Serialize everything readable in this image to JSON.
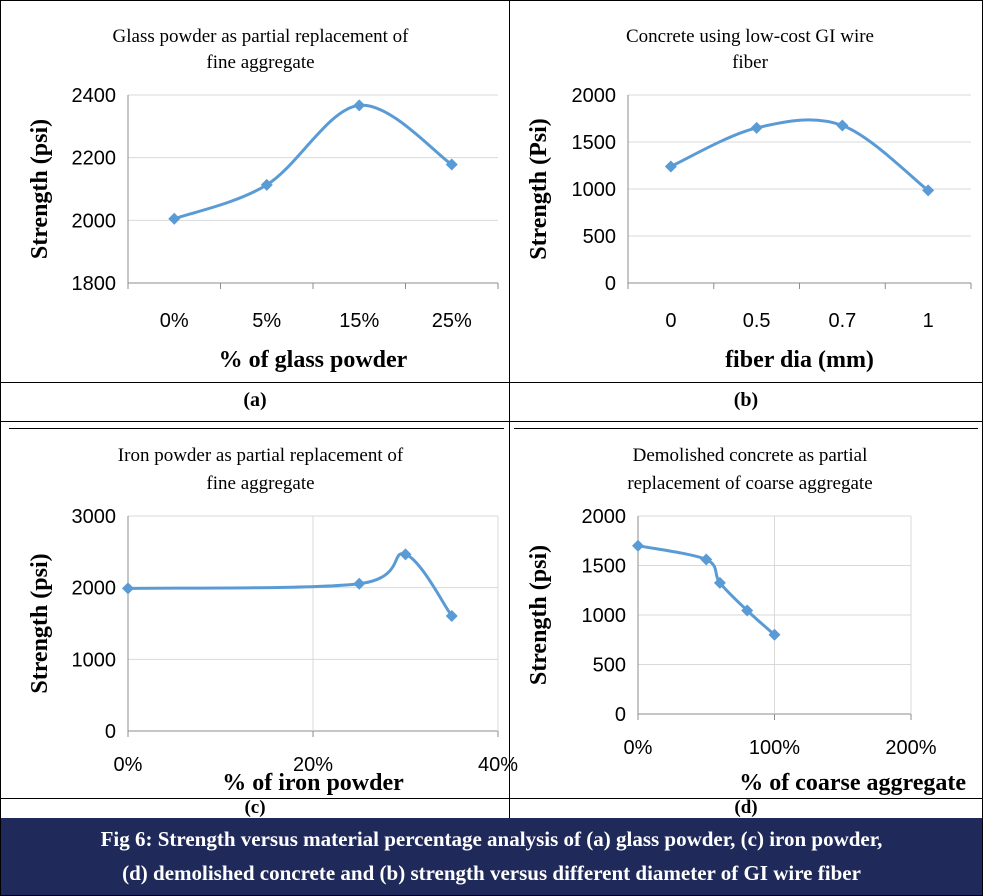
{
  "colors": {
    "line": "#5b9bd5",
    "grid": "#d9d9d9",
    "caption_bg": "#1f2a5b"
  },
  "chart_data": [
    {
      "type": "line",
      "title_lines": [
        "Glass powder as partial replacement of",
        "fine aggregate"
      ],
      "xlabel": "% of glass powder",
      "ylabel": "Strength  (psi)",
      "categories": [
        "0%",
        "5%",
        "15%",
        "25%"
      ],
      "values": [
        2005,
        2113,
        2367,
        2178
      ],
      "ylim": [
        1800,
        2400
      ],
      "yticks": [
        "1800",
        "2000",
        "2200",
        "2400"
      ],
      "grid": true
    },
    {
      "type": "line",
      "title_lines": [
        "Concrete using low-cost GI wire",
        "fiber"
      ],
      "xlabel": "fiber dia (mm)",
      "ylabel": "Strength (Psi)",
      "categories": [
        "0",
        "0.5",
        "0.7",
        "1"
      ],
      "values": [
        1240,
        1650,
        1675,
        985
      ],
      "ylim": [
        0,
        2000
      ],
      "yticks": [
        "0",
        "500",
        "1000",
        "1500",
        "2000"
      ],
      "grid": true
    },
    {
      "type": "line",
      "title_lines": [
        "Iron powder as partial replacement of",
        "fine aggregate"
      ],
      "xlabel": "% of iron powder",
      "ylabel": "Strength (psi)",
      "x": [
        0,
        25,
        30,
        35
      ],
      "values": [
        1990,
        2055,
        2465,
        1605
      ],
      "xlim": [
        0,
        40
      ],
      "xticks": [
        "0%",
        "20%",
        "40%"
      ],
      "ylim": [
        0,
        3000
      ],
      "yticks": [
        "0",
        "1000",
        "2000",
        "3000"
      ],
      "grid": true
    },
    {
      "type": "line",
      "title_lines": [
        "Demolished concrete as partial",
        "replacement of coarse aggregate"
      ],
      "xlabel": "% of coarse aggregate",
      "ylabel": "Strength (psi)",
      "x": [
        0,
        50,
        60,
        80,
        100
      ],
      "values": [
        1700,
        1560,
        1325,
        1045,
        800
      ],
      "xlim": [
        0,
        200
      ],
      "xticks": [
        "0%",
        "100%",
        "200%"
      ],
      "ylim": [
        0,
        2000
      ],
      "yticks": [
        "0",
        "500",
        "1000",
        "1500",
        "2000"
      ],
      "grid": true
    }
  ],
  "subcaptions": [
    "(a)",
    "(b)",
    "(c)",
    "(d)"
  ],
  "caption": {
    "line1": "Fig 6: Strength versus material percentage analysis of (a) glass powder, (c) iron powder,",
    "line2": "(d) demolished concrete and (b) strength versus different diameter of GI wire fiber"
  }
}
